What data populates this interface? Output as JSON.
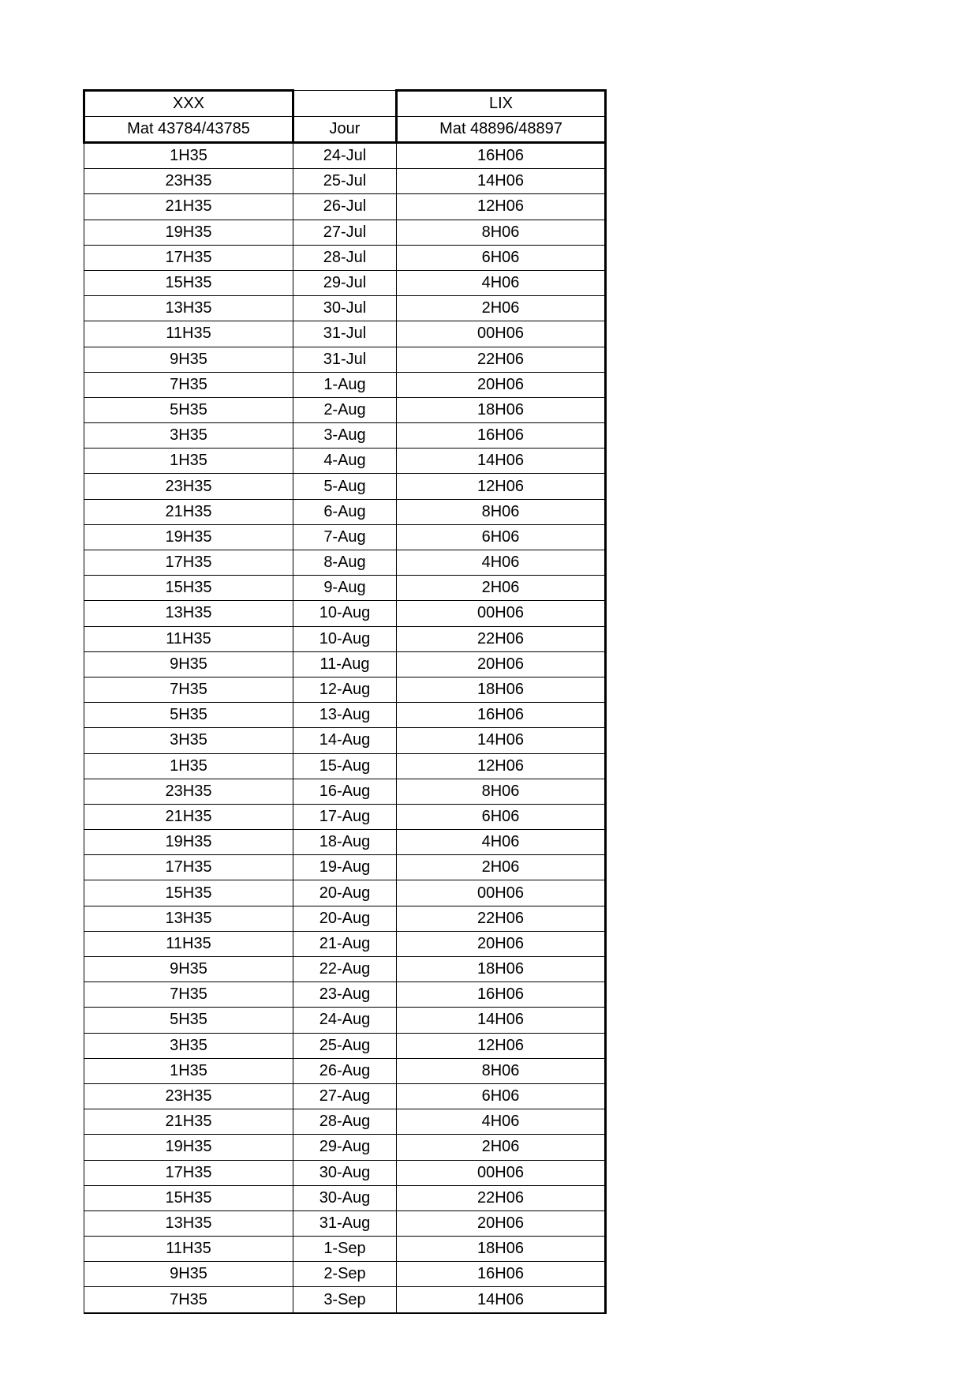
{
  "header": {
    "col1_title": "XXX",
    "col1_sub": "Mat 43784/43785",
    "col2_title": "Jour",
    "col3_title": "LIX",
    "col3_sub": "Mat 48896/48897"
  },
  "rows": [
    [
      "1H35",
      "24-Jul",
      "16H06"
    ],
    [
      "23H35",
      "25-Jul",
      "14H06"
    ],
    [
      "21H35",
      "26-Jul",
      "12H06"
    ],
    [
      "19H35",
      "27-Jul",
      "8H06"
    ],
    [
      "17H35",
      "28-Jul",
      "6H06"
    ],
    [
      "15H35",
      "29-Jul",
      "4H06"
    ],
    [
      "13H35",
      "30-Jul",
      "2H06"
    ],
    [
      "11H35",
      "31-Jul",
      "00H06"
    ],
    [
      "9H35",
      "31-Jul",
      "22H06"
    ],
    [
      "7H35",
      "1-Aug",
      "20H06"
    ],
    [
      "5H35",
      "2-Aug",
      "18H06"
    ],
    [
      "3H35",
      "3-Aug",
      "16H06"
    ],
    [
      "1H35",
      "4-Aug",
      "14H06"
    ],
    [
      "23H35",
      "5-Aug",
      "12H06"
    ],
    [
      "21H35",
      "6-Aug",
      "8H06"
    ],
    [
      "19H35",
      "7-Aug",
      "6H06"
    ],
    [
      "17H35",
      "8-Aug",
      "4H06"
    ],
    [
      "15H35",
      "9-Aug",
      "2H06"
    ],
    [
      "13H35",
      "10-Aug",
      "00H06"
    ],
    [
      "11H35",
      "10-Aug",
      "22H06"
    ],
    [
      "9H35",
      "11-Aug",
      "20H06"
    ],
    [
      "7H35",
      "12-Aug",
      "18H06"
    ],
    [
      "5H35",
      "13-Aug",
      "16H06"
    ],
    [
      "3H35",
      "14-Aug",
      "14H06"
    ],
    [
      "1H35",
      "15-Aug",
      "12H06"
    ],
    [
      "23H35",
      "16-Aug",
      "8H06"
    ],
    [
      "21H35",
      "17-Aug",
      "6H06"
    ],
    [
      "19H35",
      "18-Aug",
      "4H06"
    ],
    [
      "17H35",
      "19-Aug",
      "2H06"
    ],
    [
      "15H35",
      "20-Aug",
      "00H06"
    ],
    [
      "13H35",
      "20-Aug",
      "22H06"
    ],
    [
      "11H35",
      "21-Aug",
      "20H06"
    ],
    [
      "9H35",
      "22-Aug",
      "18H06"
    ],
    [
      "7H35",
      "23-Aug",
      "16H06"
    ],
    [
      "5H35",
      "24-Aug",
      "14H06"
    ],
    [
      "3H35",
      "25-Aug",
      "12H06"
    ],
    [
      "1H35",
      "26-Aug",
      "8H06"
    ],
    [
      "23H35",
      "27-Aug",
      "6H06"
    ],
    [
      "21H35",
      "28-Aug",
      "4H06"
    ],
    [
      "19H35",
      "29-Aug",
      "2H06"
    ],
    [
      "17H35",
      "30-Aug",
      "00H06"
    ],
    [
      "15H35",
      "30-Aug",
      "22H06"
    ],
    [
      "13H35",
      "31-Aug",
      "20H06"
    ],
    [
      "11H35",
      "1-Sep",
      "18H06"
    ],
    [
      "9H35",
      "2-Sep",
      "16H06"
    ],
    [
      "7H35",
      "3-Sep",
      "14H06"
    ]
  ]
}
